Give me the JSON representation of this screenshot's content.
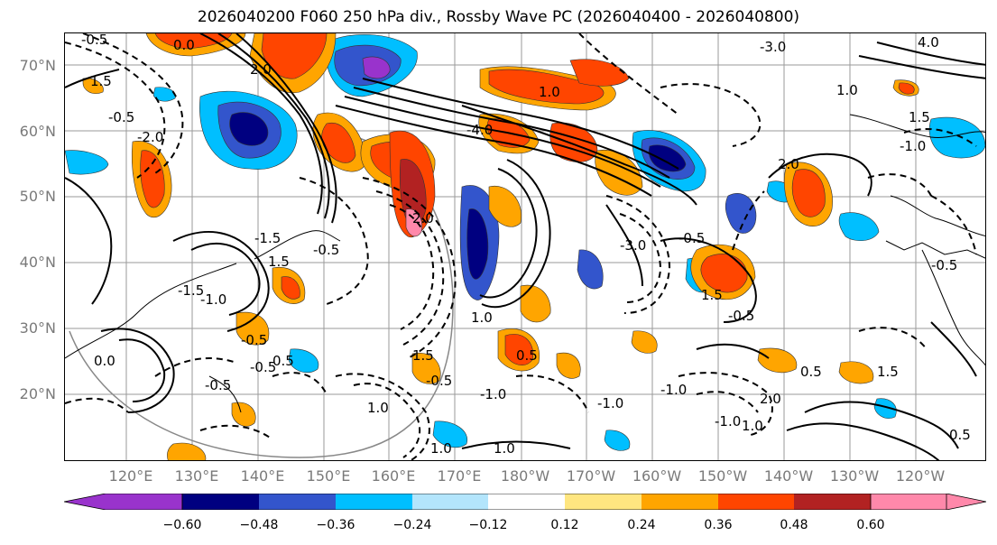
{
  "title": "2026040200 F060 250 hPa div., Rossby Wave PC (2026040400 - 2026040800)",
  "map": {
    "latitude_labels": [
      "70°N",
      "60°N",
      "50°N",
      "40°N",
      "30°N",
      "20°N"
    ],
    "longitude_labels": [
      "120°E",
      "130°E",
      "140°E",
      "150°E",
      "160°E",
      "170°E",
      "180°W",
      "170°W",
      "160°W",
      "150°W",
      "140°W",
      "130°W",
      "120°W"
    ],
    "contour_labels": [
      "-0.5",
      "1.5",
      "0.0",
      "2.0",
      "-0.5",
      "-2.0",
      "1.0",
      "-4.0",
      "-3.0",
      "1.0",
      "2.0",
      "1.5",
      "4.0",
      "-3.0",
      "-0.5",
      "-1.0",
      "2.0",
      "-1.5",
      "1.5",
      "-0.5",
      "-1.5",
      "1.5",
      "-1.0",
      "-0.5",
      "-0.5",
      "1.0",
      "1.5",
      "-0.5",
      "0.0",
      "1.0",
      "-1.0",
      "0.5",
      "-0.5",
      "0.5",
      "-1.0",
      "1.0",
      "-1.0",
      "2.0",
      "1.5",
      "0.5",
      "-1.0",
      "1.0",
      "-0.5",
      "1.0",
      "-0.5",
      "0.5"
    ],
    "colors": {
      "land_outline": "#000000",
      "grid": "#9a9a9a"
    }
  },
  "colorbar": {
    "tick_labels": [
      "−0.60",
      "−0.48",
      "−0.36",
      "−0.24",
      "−0.12",
      "0.12",
      "0.24",
      "0.36",
      "0.48",
      "0.60"
    ],
    "colors": [
      "#9933cc",
      "#000080",
      "#3355cc",
      "#00bfff",
      "#b3e5fc",
      "#ffffff",
      "#ffe680",
      "#ffa500",
      "#ff4500",
      "#b22222",
      "#ff88aa"
    ]
  }
}
